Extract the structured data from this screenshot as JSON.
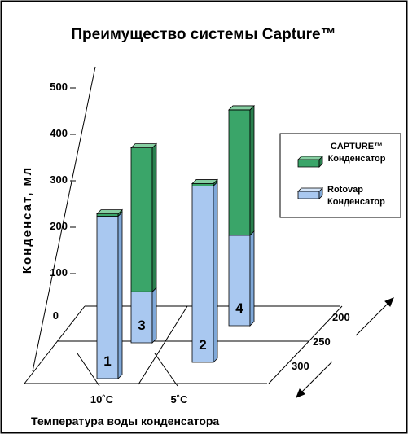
{
  "chart_data": {
    "type": "bar",
    "title": "Преимущество системы Capture™",
    "ylabel": "Конденсат, мл",
    "xlabel": "Температура воды конденсатора",
    "ylim": [
      0,
      500
    ],
    "yticks": [
      "0",
      "100",
      "200",
      "300",
      "400",
      "500"
    ],
    "temperature_labels": [
      "10˚C",
      "5˚C"
    ],
    "depth_labels": [
      "200",
      "250",
      "300"
    ],
    "legend": [
      {
        "line1": "CAPTURE™",
        "line2": "Конденсатор",
        "color": "#3aa569"
      },
      {
        "line1": "Rotovap",
        "line2": "Конденсатор",
        "color": "#a9c8f0"
      }
    ],
    "legend_position": "right",
    "bars": [
      {
        "label": "1",
        "temperature": "10˚C",
        "flow": "300",
        "rotovap": 350,
        "capture": 5
      },
      {
        "label": "3",
        "temperature": "10˚C",
        "flow": "250",
        "rotovap": 110,
        "capture": 310
      },
      {
        "label": "2",
        "temperature": "5˚C",
        "flow": "300",
        "rotovap": 380,
        "capture": 5
      },
      {
        "label": "4",
        "temperature": "5˚C",
        "flow": "250",
        "rotovap": 195,
        "capture": 270
      }
    ],
    "colors": {
      "capture": "#3aa569",
      "rotovap": "#a9c8f0",
      "capture_side": "#2a7f4e",
      "rotovap_side": "#7fa8d8",
      "capture_top": "#86cfa2",
      "rotovap_top": "#d6e6f9"
    }
  }
}
